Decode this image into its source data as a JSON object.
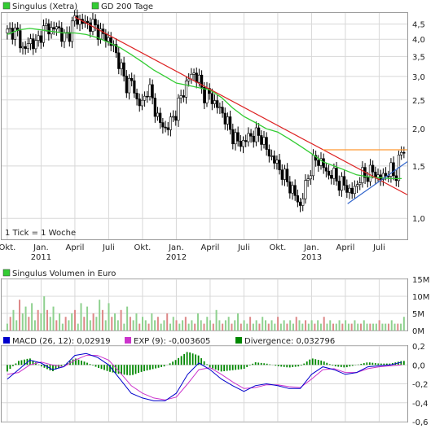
{
  "chart_data": [
    {
      "type": "line",
      "title": "",
      "legend_placement": "top-left",
      "legend": [
        {
          "label": "Singulus (Xetra)",
          "color": "#3c3"
        },
        {
          "label": "GD 200 Tage",
          "color": "#3c3"
        }
      ],
      "y_scale": "log",
      "ylim": [
        0.85,
        4.9
      ],
      "y_ticks": [
        "4,5",
        "4,0",
        "3,5",
        "3,0",
        "2,5",
        "2,0",
        "1,5",
        "1,0"
      ],
      "y_tick_values": [
        4.5,
        4.0,
        3.5,
        3.0,
        2.5,
        2.0,
        1.5,
        1.0
      ],
      "x_labels": [
        {
          "month": "Okt.",
          "year": ""
        },
        {
          "month": "Jan.",
          "year": "2011"
        },
        {
          "month": "April",
          "year": ""
        },
        {
          "month": "Juli",
          "year": ""
        },
        {
          "month": "Okt.",
          "year": ""
        },
        {
          "month": "Jan.",
          "year": "2012"
        },
        {
          "month": "April",
          "year": ""
        },
        {
          "month": "Juli",
          "year": ""
        },
        {
          "month": "Okt.",
          "year": ""
        },
        {
          "month": "Jan.",
          "year": "2013"
        },
        {
          "month": "April",
          "year": ""
        },
        {
          "month": "Juli",
          "year": ""
        }
      ],
      "x_month_index": [
        0,
        3,
        6,
        9,
        12,
        15,
        18,
        21,
        24,
        27,
        30,
        33
      ],
      "x_range_months": [
        -0.5,
        35.5
      ],
      "price_points": [
        [
          0,
          4.2
        ],
        [
          0.5,
          4.3
        ],
        [
          1,
          4.1
        ],
        [
          1.5,
          3.6
        ],
        [
          2,
          4.0
        ],
        [
          2.5,
          3.8
        ],
        [
          3,
          4.2
        ],
        [
          3.5,
          4.4
        ],
        [
          4,
          4.3
        ],
        [
          4.5,
          4.4
        ],
        [
          5,
          4.0
        ],
        [
          5.5,
          4.2
        ],
        [
          6,
          4.7
        ],
        [
          6.5,
          4.6
        ],
        [
          7,
          4.5
        ],
        [
          7.5,
          4.5
        ],
        [
          8,
          4.3
        ],
        [
          8.5,
          4.1
        ],
        [
          9,
          4.0
        ],
        [
          9.5,
          3.7
        ],
        [
          10,
          3.3
        ],
        [
          10.5,
          2.8
        ],
        [
          11,
          2.9
        ],
        [
          11.5,
          2.5
        ],
        [
          12,
          2.4
        ],
        [
          12.5,
          2.8
        ],
        [
          13,
          2.4
        ],
        [
          13.5,
          2.1
        ],
        [
          14,
          2.0
        ],
        [
          14.5,
          2.1
        ],
        [
          15,
          2.3
        ],
        [
          15.5,
          2.6
        ],
        [
          16,
          2.9
        ],
        [
          16.5,
          3.1
        ],
        [
          17,
          2.9
        ],
        [
          17.5,
          2.6
        ],
        [
          18,
          2.6
        ],
        [
          18.5,
          2.4
        ],
        [
          19,
          2.3
        ],
        [
          19.5,
          2.1
        ],
        [
          20,
          1.9
        ],
        [
          20.5,
          1.8
        ],
        [
          21,
          1.8
        ],
        [
          21.5,
          1.9
        ],
        [
          22,
          1.9
        ],
        [
          22.5,
          1.9
        ],
        [
          23,
          1.7
        ],
        [
          23.5,
          1.6
        ],
        [
          24,
          1.5
        ],
        [
          24.5,
          1.4
        ],
        [
          25,
          1.3
        ],
        [
          25.5,
          1.2
        ],
        [
          26,
          1.1
        ],
        [
          26.5,
          1.3
        ],
        [
          27,
          1.5
        ],
        [
          27.5,
          1.6
        ],
        [
          28,
          1.5
        ],
        [
          28.5,
          1.4
        ],
        [
          29,
          1.4
        ],
        [
          29.5,
          1.3
        ],
        [
          30,
          1.3
        ],
        [
          30.5,
          1.2
        ],
        [
          31,
          1.3
        ],
        [
          31.5,
          1.4
        ],
        [
          32,
          1.4
        ],
        [
          32.5,
          1.45
        ],
        [
          33,
          1.35
        ],
        [
          33.5,
          1.4
        ],
        [
          34,
          1.45
        ],
        [
          34.5,
          1.4
        ],
        [
          35,
          1.7
        ]
      ],
      "sma200_points": [
        [
          0,
          4.15
        ],
        [
          1,
          4.3
        ],
        [
          2,
          4.35
        ],
        [
          3,
          4.3
        ],
        [
          4,
          4.25
        ],
        [
          5,
          4.2
        ],
        [
          6,
          4.2
        ],
        [
          7,
          4.15
        ],
        [
          8,
          4.05
        ],
        [
          9,
          3.9
        ],
        [
          10,
          3.75
        ],
        [
          11,
          3.55
        ],
        [
          12,
          3.35
        ],
        [
          13,
          3.15
        ],
        [
          14,
          3.0
        ],
        [
          15,
          2.85
        ],
        [
          16,
          2.8
        ],
        [
          17,
          2.75
        ],
        [
          18,
          2.7
        ],
        [
          19,
          2.55
        ],
        [
          20,
          2.35
        ],
        [
          21,
          2.2
        ],
        [
          22,
          2.1
        ],
        [
          23,
          2.0
        ],
        [
          24,
          1.95
        ],
        [
          25,
          1.85
        ],
        [
          26,
          1.75
        ],
        [
          27,
          1.65
        ],
        [
          28,
          1.55
        ],
        [
          29,
          1.5
        ],
        [
          30,
          1.45
        ],
        [
          31,
          1.4
        ],
        [
          32,
          1.38
        ],
        [
          33,
          1.37
        ],
        [
          34,
          1.36
        ],
        [
          35,
          1.36
        ]
      ],
      "trendlines": [
        {
          "color": "#d22",
          "from": [
            6,
            4.75
          ],
          "to": [
            35.5,
            1.2
          ]
        },
        {
          "color": "#36c",
          "from": [
            30.2,
            1.12
          ],
          "to": [
            35.5,
            1.55
          ]
        },
        {
          "color": "#f93",
          "from": [
            28,
            1.7
          ],
          "to": [
            35.5,
            1.7
          ]
        }
      ],
      "annotation": "1 Tick = 1 Woche"
    },
    {
      "type": "bar",
      "legend": [
        {
          "label": "Singulus Volumen in Euro",
          "color": "#3c3"
        }
      ],
      "ylim": [
        0,
        15
      ],
      "y_ticks": [
        "15M",
        "10M",
        "5M",
        "0M"
      ],
      "y_tick_values": [
        15,
        10,
        5,
        0
      ],
      "unit": "Mio. Euro",
      "values": [
        2,
        4,
        6,
        3,
        9,
        5,
        7,
        4,
        8,
        3,
        6,
        5,
        10,
        6,
        4,
        7,
        3,
        5,
        2,
        4,
        3,
        5,
        6,
        2,
        8,
        4,
        7,
        3,
        5,
        4,
        9,
        6,
        3,
        8,
        4,
        5,
        3,
        6,
        2,
        7,
        4,
        3,
        5,
        2,
        4,
        3,
        2,
        5,
        3,
        4,
        2,
        3,
        5,
        2,
        4,
        3,
        2,
        3,
        4,
        2,
        3,
        2,
        5,
        3,
        2,
        4,
        3,
        2,
        6,
        3,
        2,
        3,
        4,
        2,
        3,
        5,
        2,
        3,
        2,
        4,
        2,
        3,
        2,
        4,
        3,
        2,
        3,
        2,
        4,
        2,
        3,
        2,
        3,
        2,
        4,
        3,
        2,
        3,
        2,
        3,
        2,
        3,
        2,
        4,
        2,
        3,
        2,
        2,
        3,
        2,
        3,
        2,
        2,
        3,
        2,
        2,
        3,
        2,
        2,
        2,
        2,
        3,
        2,
        2,
        2,
        3,
        2,
        2,
        2,
        4
      ]
    },
    {
      "type": "line",
      "legend": [
        {
          "label": "MACD (26, 12): 0,02919",
          "color": "#00c"
        },
        {
          "label": "EXP (9): -0,003605",
          "color": "#c3c"
        },
        {
          "label": "Divergence: 0,032796",
          "color": "#080"
        }
      ],
      "ylim": [
        -0.6,
        0.2
      ],
      "y_ticks": [
        "0,2",
        "0,0",
        "-0,2",
        "-0,4",
        "-0,6"
      ],
      "y_tick_values": [
        0.2,
        0.0,
        -0.2,
        -0.4,
        -0.6
      ],
      "macd": [
        [
          0,
          -0.15
        ],
        [
          1,
          -0.05
        ],
        [
          2,
          0.05
        ],
        [
          3,
          0.02
        ],
        [
          4,
          -0.05
        ],
        [
          5,
          -0.02
        ],
        [
          6,
          0.1
        ],
        [
          7,
          0.12
        ],
        [
          8,
          0.08
        ],
        [
          9,
          0.0
        ],
        [
          10,
          -0.15
        ],
        [
          11,
          -0.3
        ],
        [
          12,
          -0.35
        ],
        [
          13,
          -0.38
        ],
        [
          14,
          -0.38
        ],
        [
          15,
          -0.3
        ],
        [
          16,
          -0.1
        ],
        [
          17,
          0.02
        ],
        [
          18,
          -0.05
        ],
        [
          19,
          -0.15
        ],
        [
          20,
          -0.22
        ],
        [
          21,
          -0.28
        ],
        [
          22,
          -0.22
        ],
        [
          23,
          -0.2
        ],
        [
          24,
          -0.22
        ],
        [
          25,
          -0.25
        ],
        [
          26,
          -0.25
        ],
        [
          27,
          -0.1
        ],
        [
          28,
          -0.02
        ],
        [
          29,
          -0.05
        ],
        [
          30,
          -0.1
        ],
        [
          31,
          -0.08
        ],
        [
          32,
          -0.02
        ],
        [
          33,
          -0.01
        ],
        [
          34,
          0.0
        ],
        [
          35,
          0.03
        ]
      ],
      "signal": [
        [
          0,
          -0.1
        ],
        [
          1,
          -0.08
        ],
        [
          2,
          0.0
        ],
        [
          3,
          0.03
        ],
        [
          4,
          0.0
        ],
        [
          5,
          -0.02
        ],
        [
          6,
          0.05
        ],
        [
          7,
          0.1
        ],
        [
          8,
          0.1
        ],
        [
          9,
          0.05
        ],
        [
          10,
          -0.08
        ],
        [
          11,
          -0.22
        ],
        [
          12,
          -0.3
        ],
        [
          13,
          -0.35
        ],
        [
          14,
          -0.37
        ],
        [
          15,
          -0.34
        ],
        [
          16,
          -0.2
        ],
        [
          17,
          -0.05
        ],
        [
          18,
          -0.03
        ],
        [
          19,
          -0.1
        ],
        [
          20,
          -0.18
        ],
        [
          21,
          -0.25
        ],
        [
          22,
          -0.24
        ],
        [
          23,
          -0.21
        ],
        [
          24,
          -0.21
        ],
        [
          25,
          -0.23
        ],
        [
          26,
          -0.24
        ],
        [
          27,
          -0.15
        ],
        [
          28,
          -0.05
        ],
        [
          29,
          -0.04
        ],
        [
          30,
          -0.08
        ],
        [
          31,
          -0.08
        ],
        [
          32,
          -0.04
        ],
        [
          33,
          -0.02
        ],
        [
          34,
          -0.01
        ],
        [
          35,
          0.0
        ]
      ]
    }
  ],
  "colors": {
    "grid": "#d8d8d8",
    "frame": "#999999",
    "up_candle": "#ffffff",
    "down_candle": "#000000",
    "volume_up": "#8fd18f",
    "volume_down": "#d88"
  }
}
